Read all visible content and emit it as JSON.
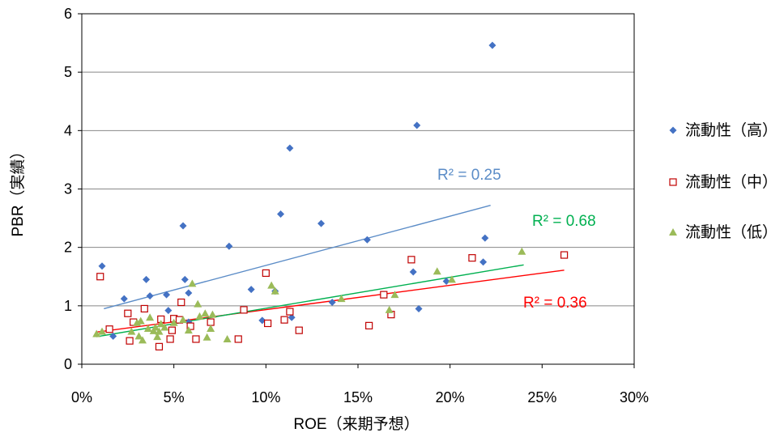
{
  "chart_data": {
    "type": "scatter",
    "xlabel": "ROE（来期予想）",
    "ylabel": "PBR（実績）",
    "xlim": [
      0,
      0.3
    ],
    "ylim": [
      0,
      6
    ],
    "x_ticks": [
      0,
      0.05,
      0.1,
      0.15,
      0.2,
      0.25,
      0.3
    ],
    "x_tick_labels": [
      "0%",
      "5%",
      "10%",
      "15%",
      "20%",
      "25%",
      "30%"
    ],
    "y_ticks": [
      0,
      1,
      2,
      3,
      4,
      5,
      6
    ],
    "y_tick_labels": [
      "0",
      "1",
      "2",
      "3",
      "4",
      "5",
      "6"
    ],
    "grid": "horizontal",
    "legend_position": "right",
    "series": [
      {
        "name": "流動性（高）",
        "color": "#4472C4",
        "marker": "diamond",
        "trend_color": "#5B8CC7",
        "r2_label": "R² = 0.25",
        "trend": [
          [
            0.012,
            0.95
          ],
          [
            0.222,
            2.72
          ]
        ],
        "points": [
          [
            0.011,
            1.68
          ],
          [
            0.017,
            0.48
          ],
          [
            0.023,
            1.12
          ],
          [
            0.035,
            1.45
          ],
          [
            0.037,
            1.17
          ],
          [
            0.046,
            1.19
          ],
          [
            0.047,
            0.92
          ],
          [
            0.055,
            2.37
          ],
          [
            0.056,
            1.45
          ],
          [
            0.058,
            1.22
          ],
          [
            0.058,
            0.72
          ],
          [
            0.08,
            2.02
          ],
          [
            0.092,
            1.28
          ],
          [
            0.098,
            0.75
          ],
          [
            0.105,
            1.25
          ],
          [
            0.108,
            2.57
          ],
          [
            0.113,
            3.7
          ],
          [
            0.114,
            0.8
          ],
          [
            0.13,
            2.41
          ],
          [
            0.136,
            1.06
          ],
          [
            0.155,
            2.13
          ],
          [
            0.18,
            1.58
          ],
          [
            0.182,
            4.09
          ],
          [
            0.183,
            0.95
          ],
          [
            0.198,
            1.42
          ],
          [
            0.218,
            1.75
          ],
          [
            0.219,
            2.16
          ],
          [
            0.223,
            5.46
          ]
        ]
      },
      {
        "name": "流動性（中）",
        "color": "#C00000",
        "marker": "square-open",
        "trend_color": "#FF0000",
        "r2_label": "R² = 0.36",
        "trend": [
          [
            0.008,
            0.55
          ],
          [
            0.262,
            1.61
          ]
        ],
        "points": [
          [
            0.01,
            1.5
          ],
          [
            0.015,
            0.6
          ],
          [
            0.025,
            0.87
          ],
          [
            0.026,
            0.4
          ],
          [
            0.028,
            0.72
          ],
          [
            0.034,
            0.95
          ],
          [
            0.042,
            0.3
          ],
          [
            0.043,
            0.77
          ],
          [
            0.048,
            0.43
          ],
          [
            0.049,
            0.58
          ],
          [
            0.05,
            0.78
          ],
          [
            0.053,
            0.76
          ],
          [
            0.054,
            1.06
          ],
          [
            0.059,
            0.65
          ],
          [
            0.062,
            0.43
          ],
          [
            0.07,
            0.72
          ],
          [
            0.085,
            0.43
          ],
          [
            0.088,
            0.93
          ],
          [
            0.1,
            1.56
          ],
          [
            0.101,
            0.7
          ],
          [
            0.11,
            0.76
          ],
          [
            0.113,
            0.9
          ],
          [
            0.118,
            0.58
          ],
          [
            0.156,
            0.66
          ],
          [
            0.164,
            1.19
          ],
          [
            0.168,
            0.85
          ],
          [
            0.179,
            1.79
          ],
          [
            0.212,
            1.82
          ],
          [
            0.262,
            1.87
          ]
        ]
      },
      {
        "name": "流動性（低）",
        "color": "#9BBB59",
        "marker": "triangle",
        "trend_color": "#00B050",
        "r2_label": "R² = 0.68",
        "trend": [
          [
            0.008,
            0.47
          ],
          [
            0.24,
            1.7
          ]
        ],
        "points": [
          [
            0.008,
            0.52
          ],
          [
            0.011,
            0.56
          ],
          [
            0.027,
            0.56
          ],
          [
            0.03,
            0.71
          ],
          [
            0.031,
            0.48
          ],
          [
            0.032,
            0.74
          ],
          [
            0.033,
            0.41
          ],
          [
            0.036,
            0.61
          ],
          [
            0.037,
            0.8
          ],
          [
            0.039,
            0.57
          ],
          [
            0.04,
            0.63
          ],
          [
            0.041,
            0.47
          ],
          [
            0.042,
            0.56
          ],
          [
            0.043,
            0.69
          ],
          [
            0.045,
            0.63
          ],
          [
            0.05,
            0.71
          ],
          [
            0.055,
            0.76
          ],
          [
            0.058,
            0.58
          ],
          [
            0.06,
            1.38
          ],
          [
            0.063,
            1.03
          ],
          [
            0.064,
            0.82
          ],
          [
            0.067,
            0.87
          ],
          [
            0.068,
            0.46
          ],
          [
            0.07,
            0.61
          ],
          [
            0.071,
            0.85
          ],
          [
            0.079,
            0.43
          ],
          [
            0.103,
            1.35
          ],
          [
            0.105,
            1.25
          ],
          [
            0.141,
            1.12
          ],
          [
            0.167,
            0.93
          ],
          [
            0.17,
            1.19
          ],
          [
            0.193,
            1.59
          ],
          [
            0.201,
            1.45
          ],
          [
            0.239,
            1.93
          ]
        ]
      }
    ]
  }
}
